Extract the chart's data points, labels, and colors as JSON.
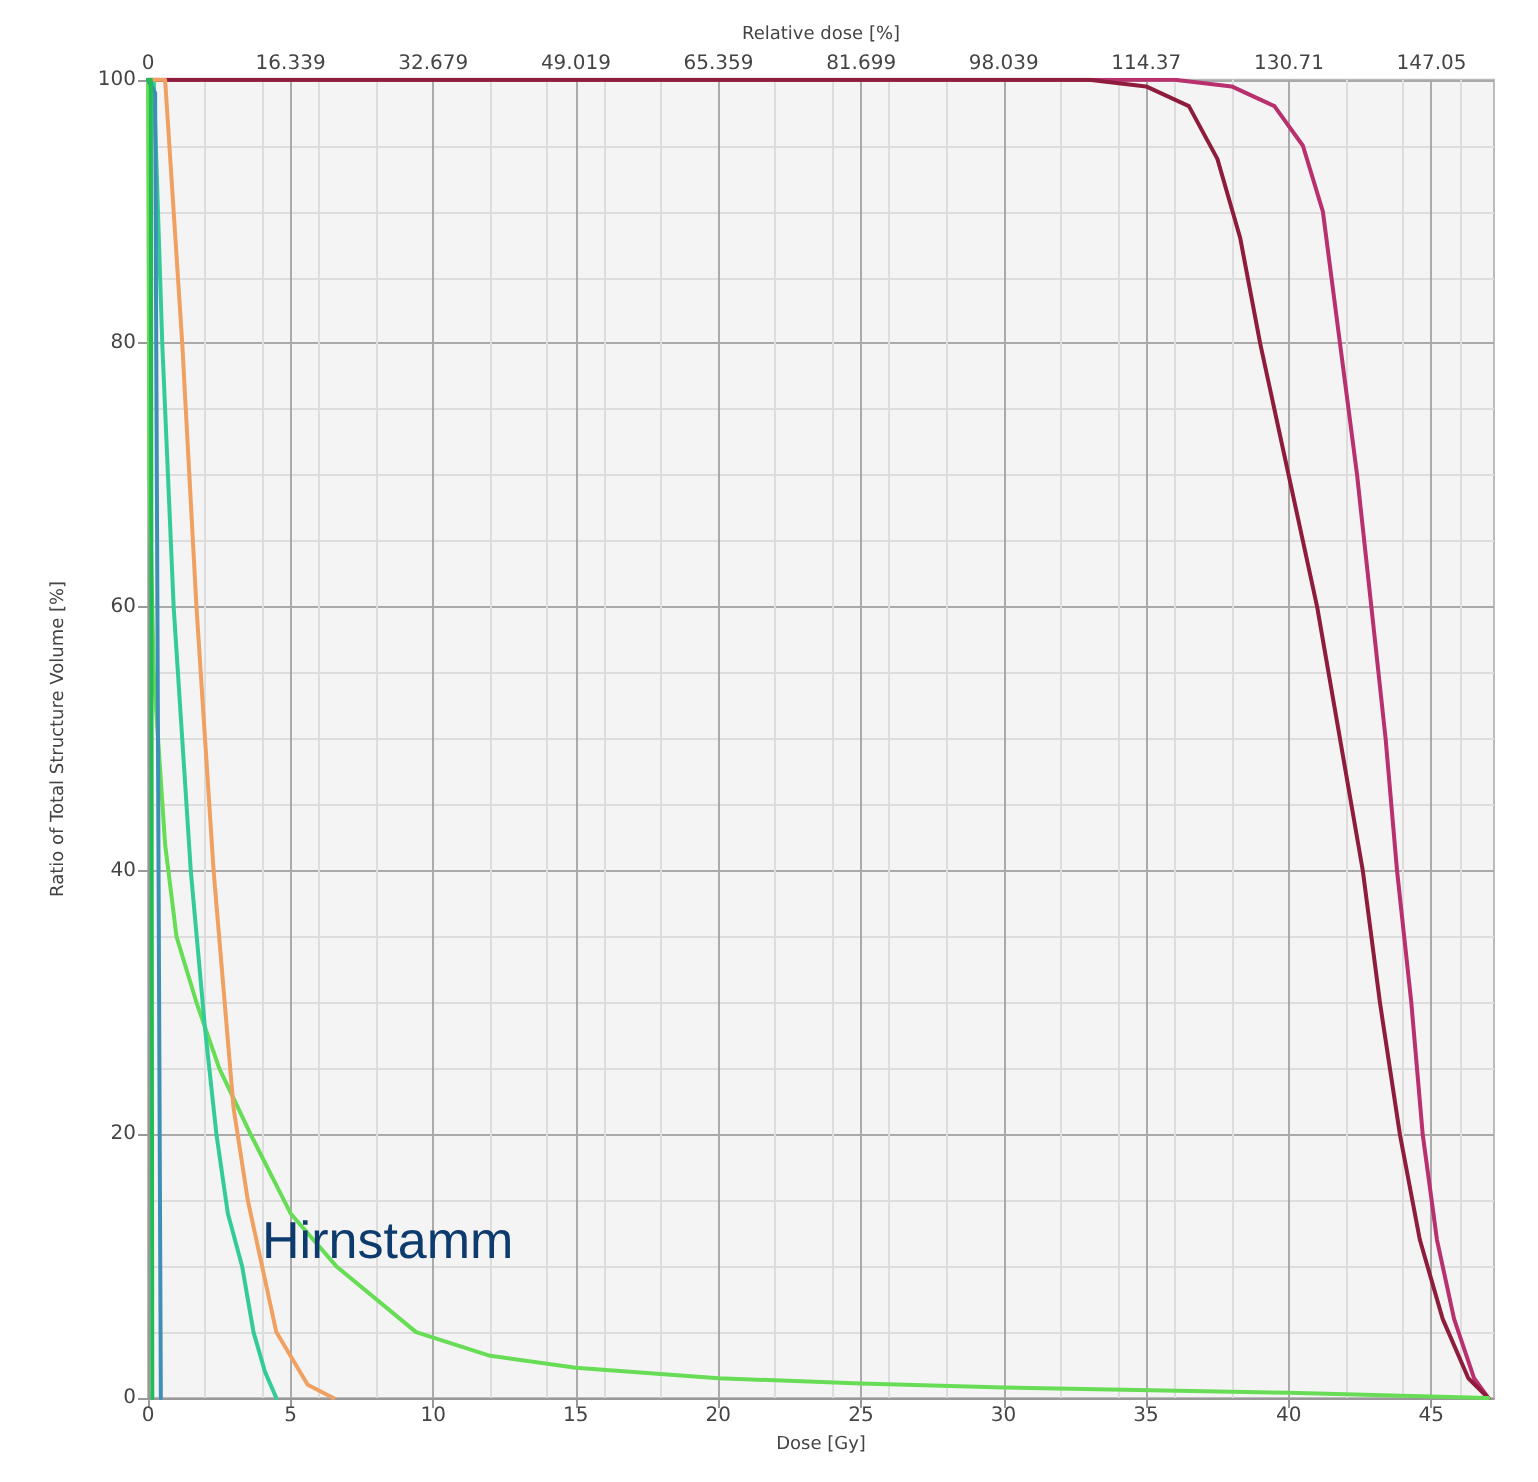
{
  "chart_data": {
    "type": "line",
    "xlabel": "Dose [Gy]",
    "ylabel": "Ratio of Total Structure Volume [%]",
    "x2label": "Relative dose [%]",
    "xlim": [
      0,
      47.2
    ],
    "xticks": [
      0,
      5,
      10,
      15,
      20,
      25,
      30,
      35,
      40,
      45
    ],
    "x2lim": [
      0,
      154.2
    ],
    "x2ticks": [
      0,
      16.339,
      32.679,
      49.019,
      65.359,
      81.699,
      98.039,
      114.37,
      130.71,
      147.05
    ],
    "ylim": [
      0,
      100
    ],
    "yticks": [
      0,
      20,
      40,
      60,
      80,
      100
    ],
    "grid": true,
    "marker": "none",
    "line_style": "solid",
    "annotations": [
      {
        "text": "Hirnstamm",
        "x": 4,
        "y": 12
      }
    ],
    "series": [
      {
        "color": "#b8306e",
        "x": [
          0,
          36,
          38,
          39.5,
          40.5,
          41.2,
          41.8,
          42.4,
          42.9,
          43.4,
          43.8,
          44.3,
          44.7,
          45.2,
          45.8,
          46.5,
          47
        ],
        "values": [
          100,
          100,
          99.5,
          98,
          95,
          90,
          80,
          70,
          60,
          50,
          40,
          30,
          20,
          12,
          6,
          1.5,
          0
        ]
      },
      {
        "color": "#8e1c3c",
        "x": [
          0,
          33,
          35,
          36.5,
          37.5,
          38.3,
          39,
          40,
          41,
          41.8,
          42.6,
          43.2,
          43.9,
          44.6,
          45.4,
          46.3,
          47
        ],
        "values": [
          100,
          100,
          99.5,
          98,
          94,
          88,
          80,
          70,
          60,
          50,
          40,
          30,
          20,
          12,
          6,
          1.5,
          0
        ]
      },
      {
        "color": "#66dd55",
        "x": [
          0,
          0.05,
          0.2,
          0.6,
          1,
          1.7,
          2.5,
          3.6,
          5,
          6.6,
          9.4,
          12,
          15,
          20,
          25,
          30,
          40,
          47
        ],
        "values": [
          100,
          70,
          55,
          42,
          35,
          30,
          25,
          20,
          14,
          10,
          5,
          3.2,
          2.3,
          1.5,
          1.1,
          0.8,
          0.4,
          0
        ]
      },
      {
        "color": "#33cc99",
        "x": [
          0,
          0.2,
          0.5,
          0.9,
          1.5,
          2,
          2.4,
          2.8,
          3.3,
          3.7,
          4.1,
          4.5
        ],
        "values": [
          100,
          100,
          80,
          60,
          40,
          28,
          20,
          14,
          10,
          5,
          2,
          0
        ]
      },
      {
        "color": "#f0a060",
        "x": [
          0,
          0.6,
          1.2,
          1.7,
          2.3,
          3,
          3.5,
          4,
          4.5,
          5.6,
          6.5
        ],
        "values": [
          100,
          100,
          80,
          60,
          40,
          22,
          15,
          10,
          5,
          1,
          0
        ]
      },
      {
        "color": "#3d8fb5",
        "x": [
          0,
          0.25,
          0.35,
          0.45
        ],
        "values": [
          100,
          99,
          50,
          0
        ]
      },
      {
        "color": "#22bb55",
        "x": [
          0,
          0.1,
          0.15
        ],
        "values": [
          100,
          100,
          0
        ]
      }
    ]
  }
}
